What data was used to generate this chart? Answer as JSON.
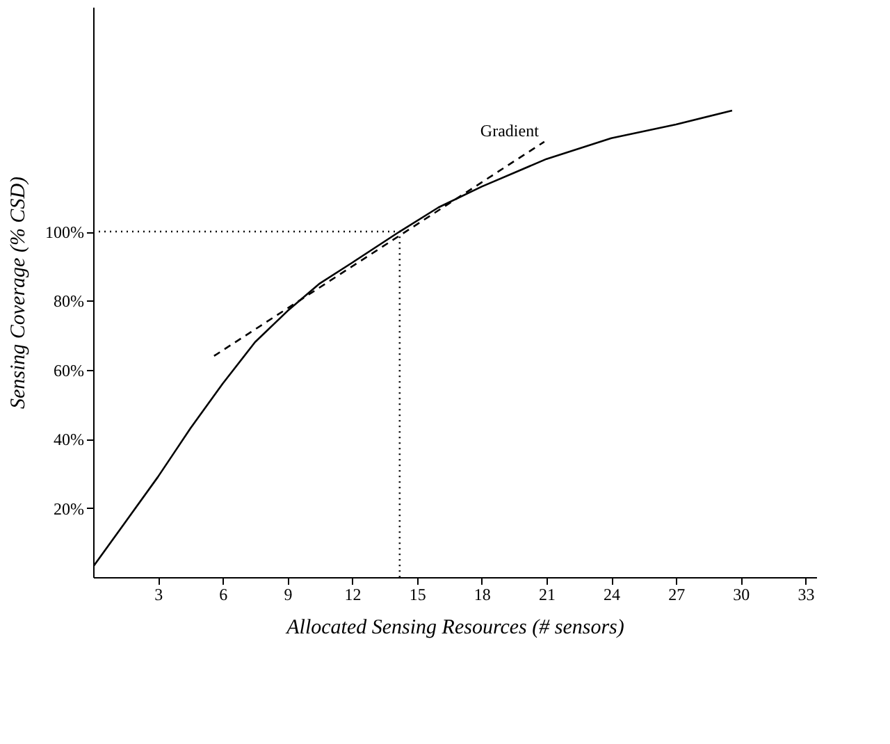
{
  "chart_data": {
    "type": "line",
    "xlabel": "Allocated Sensing Resources (# sensors)",
    "ylabel": "Sensing Coverage (% CSD)",
    "xlim": [
      0,
      33.5
    ],
    "ylim": [
      0,
      165
    ],
    "xticks": [
      3,
      6,
      9,
      12,
      15,
      18,
      21,
      24,
      27,
      30,
      33
    ],
    "yticks": [
      {
        "value": 20,
        "label": "20%"
      },
      {
        "value": 40,
        "label": "40%"
      },
      {
        "value": 60,
        "label": "60%"
      },
      {
        "value": 80,
        "label": "80%"
      },
      {
        "value": 100,
        "label": "100%"
      }
    ],
    "grid": false,
    "marker": "none",
    "series": [
      {
        "color": "#000000",
        "line_style": "solid",
        "x": [
          0,
          1.5,
          3,
          4.5,
          6,
          7.5,
          9,
          10.5,
          12,
          14.2,
          16,
          18,
          21,
          24,
          27,
          29.6
        ],
        "values": [
          3,
          16,
          29,
          43,
          56,
          68,
          77,
          85,
          91,
          100,
          107,
          113,
          121,
          127,
          131,
          135
        ]
      },
      {
        "color": "#000000",
        "line_style": "dashed",
        "x": [
          5.6,
          20.9
        ],
        "values": [
          64,
          126
        ]
      },
      {
        "color": "#000000",
        "line_style": "dotted",
        "x": [
          0,
          14.2,
          14.2
        ],
        "values": [
          100,
          100,
          0
        ]
      }
    ],
    "annotations": [
      {
        "text": "Gradient",
        "x": 20.9,
        "y": 126
      }
    ]
  }
}
